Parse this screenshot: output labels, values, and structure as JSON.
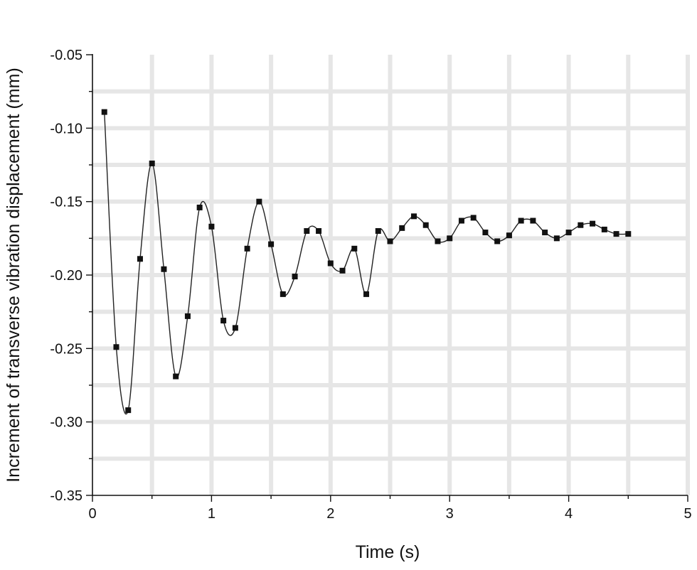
{
  "chart_data": {
    "type": "line",
    "title": "",
    "xlabel": "Time (s)",
    "ylabel": "Increment of transverse vibration displacement (mm)",
    "xlim": [
      0,
      5
    ],
    "ylim": [
      -0.35,
      -0.05
    ],
    "xticks": [
      0,
      1,
      2,
      3,
      4,
      5
    ],
    "xtick_labels": [
      "0",
      "1",
      "2",
      "3",
      "4",
      "5"
    ],
    "yticks": [
      -0.35,
      -0.3,
      -0.25,
      -0.2,
      -0.15,
      -0.1,
      -0.05
    ],
    "ytick_labels": [
      "-0.35",
      "-0.30",
      "-0.25",
      "-0.20",
      "-0.15",
      "-0.10",
      "-0.05"
    ],
    "grid": true,
    "marker": "square",
    "series": [
      {
        "x": [
          0.1,
          0.2,
          0.3,
          0.4,
          0.5,
          0.6,
          0.7,
          0.8,
          0.9,
          1.0,
          1.1,
          1.2,
          1.3,
          1.4,
          1.5,
          1.6,
          1.7,
          1.8,
          1.9,
          2.0,
          2.1,
          2.2,
          2.3,
          2.4,
          2.5,
          2.6,
          2.7,
          2.8,
          2.9,
          3.0,
          3.1,
          3.2,
          3.3,
          3.4,
          3.5,
          3.6,
          3.7,
          3.8,
          3.9,
          4.0,
          4.1,
          4.2,
          4.3,
          4.4,
          4.5
        ],
        "y": [
          -0.089,
          -0.249,
          -0.292,
          -0.189,
          -0.124,
          -0.196,
          -0.269,
          -0.228,
          -0.154,
          -0.167,
          -0.231,
          -0.236,
          -0.182,
          -0.15,
          -0.179,
          -0.213,
          -0.201,
          -0.17,
          -0.17,
          -0.192,
          -0.197,
          -0.182,
          -0.213,
          -0.17,
          -0.177,
          -0.168,
          -0.16,
          -0.166,
          -0.177,
          -0.175,
          -0.163,
          -0.161,
          -0.171,
          -0.177,
          -0.173,
          -0.163,
          -0.163,
          -0.171,
          -0.175,
          -0.171,
          -0.166,
          -0.165,
          -0.169,
          -0.172,
          -0.172
        ]
      }
    ]
  }
}
